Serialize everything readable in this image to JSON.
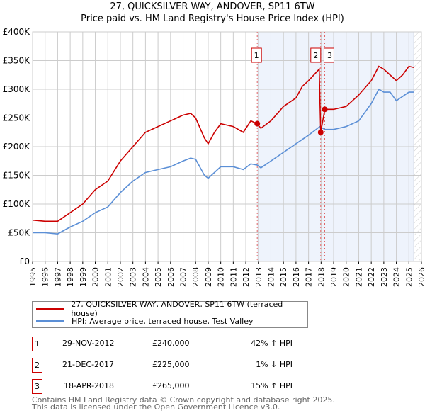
{
  "chart_data": {
    "type": "line",
    "title": "27, QUICKSILVER WAY, ANDOVER, SP11 6TW",
    "subtitle": "Price paid vs. HM Land Registry's House Price Index (HPI)",
    "xlim": [
      1995,
      2026
    ],
    "ylim": [
      0,
      400000
    ],
    "x_ticks": [
      "1995",
      "1996",
      "1997",
      "1998",
      "1999",
      "2000",
      "2001",
      "2002",
      "2003",
      "2004",
      "2005",
      "2006",
      "2007",
      "2008",
      "2009",
      "2010",
      "2011",
      "2012",
      "2013",
      "2014",
      "2015",
      "2016",
      "2017",
      "2018",
      "2019",
      "2020",
      "2021",
      "2022",
      "2023",
      "2024",
      "2025",
      "2026"
    ],
    "y_ticks": [
      {
        "v": 0,
        "label": "£0"
      },
      {
        "v": 50000,
        "label": "£50K"
      },
      {
        "v": 100000,
        "label": "£100K"
      },
      {
        "v": 150000,
        "label": "£150K"
      },
      {
        "v": 200000,
        "label": "£200K"
      },
      {
        "v": 250000,
        "label": "£250K"
      },
      {
        "v": 300000,
        "label": "£300K"
      },
      {
        "v": 350000,
        "label": "£350K"
      },
      {
        "v": 400000,
        "label": "£400K"
      }
    ],
    "grid": true,
    "series": [
      {
        "name": "27, QUICKSILVER WAY, ANDOVER, SP11 6TW (terraced house)",
        "color": "#cc0000",
        "x": [
          1995,
          1996,
          1997,
          1998,
          1999,
          2000,
          2001,
          2002,
          2003,
          2004,
          2005,
          2006,
          2007,
          2007.6,
          2008,
          2008.7,
          2009,
          2009.5,
          2010,
          2011,
          2011.8,
          2012.4,
          2012.9,
          2013.2,
          2014,
          2015,
          2016,
          2016.5,
          2017,
          2017.85,
          2017.97,
          2018.3,
          2019,
          2020,
          2021,
          2022,
          2022.6,
          2023,
          2023.5,
          2024,
          2024.5,
          2025,
          2025.4
        ],
        "y": [
          72000,
          70000,
          70000,
          85000,
          100000,
          125000,
          140000,
          175000,
          200000,
          225000,
          235000,
          245000,
          255000,
          258000,
          250000,
          215000,
          205000,
          225000,
          240000,
          235000,
          225000,
          245000,
          240000,
          232000,
          245000,
          270000,
          285000,
          305000,
          315000,
          335000,
          225000,
          265000,
          265000,
          270000,
          290000,
          315000,
          340000,
          335000,
          325000,
          315000,
          325000,
          340000,
          338000
        ]
      },
      {
        "name": "HPI: Average price, terraced house, Test Valley",
        "color": "#5b8fd6",
        "x": [
          1995,
          1996,
          1997,
          1998,
          1999,
          2000,
          2001,
          2002,
          2003,
          2004,
          2005,
          2006,
          2007,
          2007.6,
          2008,
          2008.7,
          2009,
          2010,
          2011,
          2011.8,
          2012.4,
          2012.9,
          2013.2,
          2014,
          2015,
          2016,
          2017,
          2017.9,
          2018.3,
          2019,
          2020,
          2021,
          2022,
          2022.6,
          2023,
          2023.5,
          2024,
          2025,
          2025.4
        ],
        "y": [
          50000,
          50000,
          48000,
          60000,
          70000,
          85000,
          95000,
          120000,
          140000,
          155000,
          160000,
          165000,
          175000,
          180000,
          178000,
          150000,
          145000,
          165000,
          165000,
          160000,
          170000,
          168000,
          163000,
          175000,
          190000,
          205000,
          220000,
          235000,
          230000,
          230000,
          235000,
          245000,
          275000,
          300000,
          295000,
          295000,
          280000,
          295000,
          295000
        ]
      }
    ],
    "sales": [
      {
        "label": "1",
        "x": 2012.91,
        "y": 240000
      },
      {
        "label": "2",
        "x": 2017.97,
        "y": 225000
      },
      {
        "label": "3",
        "x": 2018.29,
        "y": 265000
      }
    ],
    "hatch_from": 2025.4
  },
  "legend": {
    "red": "27, QUICKSILVER WAY, ANDOVER, SP11 6TW (terraced house)",
    "blue": "HPI: Average price, terraced house, Test Valley"
  },
  "table": [
    {
      "num": "1",
      "date": "29-NOV-2012",
      "price": "£240,000",
      "hpi": "42% ↑ HPI"
    },
    {
      "num": "2",
      "date": "21-DEC-2017",
      "price": "£225,000",
      "hpi": "1% ↓ HPI"
    },
    {
      "num": "3",
      "date": "18-APR-2018",
      "price": "£265,000",
      "hpi": "15% ↑ HPI"
    }
  ],
  "footer": [
    "Contains HM Land Registry data © Crown copyright and database right 2025.",
    "This data is licensed under the Open Government Licence v3.0."
  ]
}
